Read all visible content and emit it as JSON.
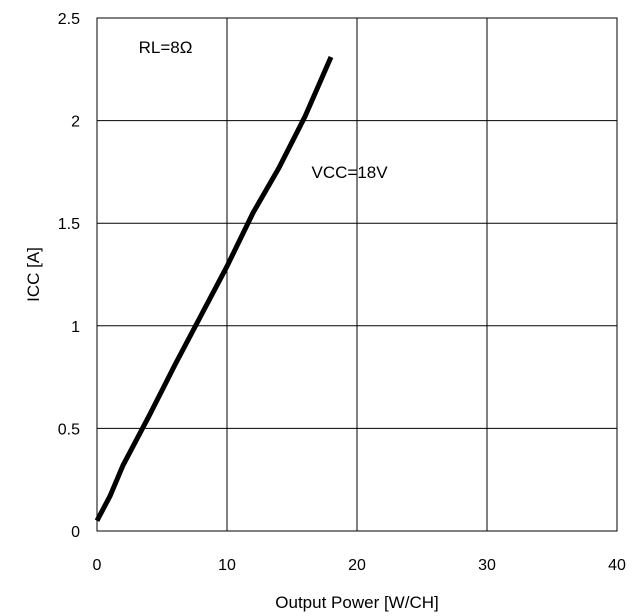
{
  "chart_data": {
    "type": "line",
    "xlabel": "Output Power [W/CH]",
    "ylabel": "ICC [A]",
    "xlim": [
      0,
      40
    ],
    "ylim": [
      0,
      2.5
    ],
    "x_ticks": [
      0,
      10,
      20,
      30,
      40
    ],
    "y_ticks": [
      0,
      0.5,
      1,
      1.5,
      2,
      2.5
    ],
    "x_tick_labels": [
      "0",
      "10",
      "20",
      "30",
      "40"
    ],
    "y_tick_labels": [
      "0",
      "0.5",
      "1",
      "1.5",
      "2",
      "2.5"
    ],
    "grid": true,
    "series": [
      {
        "x": [
          0,
          1,
          2,
          4,
          6,
          8,
          10,
          12,
          14,
          16,
          18
        ],
        "y": [
          0.05,
          0.17,
          0.32,
          0.56,
          0.81,
          1.05,
          1.29,
          1.55,
          1.77,
          2.02,
          2.31
        ]
      }
    ],
    "annotations": [
      {
        "text": "RL=8Ω",
        "x": 3.2,
        "y": 2.33
      },
      {
        "text": "VCC=18V",
        "x": 16.5,
        "y": 1.72
      }
    ]
  }
}
